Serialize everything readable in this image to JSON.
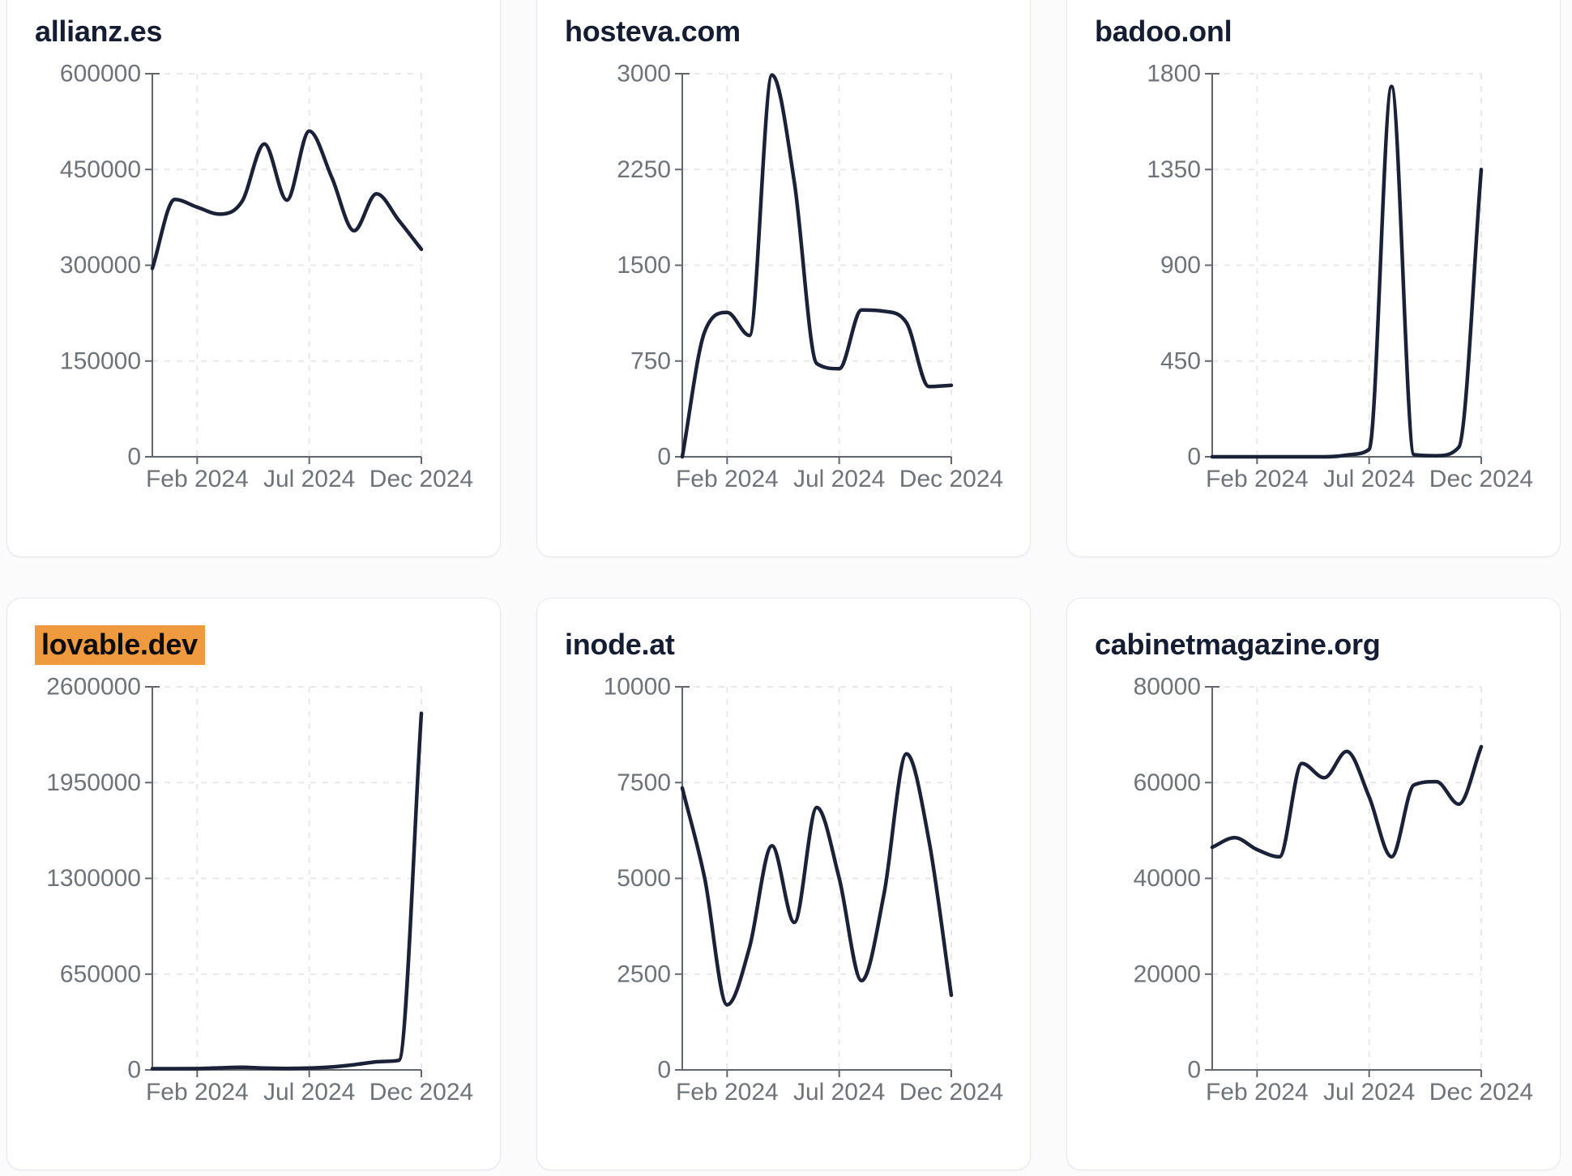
{
  "page": {
    "background": "#fbfbfc",
    "card_background": "#ffffff",
    "card_border": "#e6e9ef"
  },
  "chart_style": {
    "line_color": "#1b2238",
    "axis_color": "#63676d",
    "grid_color": "#e8e8ea",
    "label_color": "#6f7378",
    "title_color": "#151d33",
    "highlight_color": "#f09a3f"
  },
  "chart_data": [
    {
      "type": "line",
      "title": "allianz.es",
      "title_highlight": false,
      "x": [
        "Dec 2023",
        "Jan 2024",
        "Feb 2024",
        "Mar 2024",
        "Apr 2024",
        "May 2024",
        "Jun 2024",
        "Jul 2024",
        "Aug 2024",
        "Sep 2024",
        "Oct 2024",
        "Nov 2024",
        "Dec 2024"
      ],
      "values": [
        295000,
        403000,
        391000,
        380000,
        400000,
        490000,
        402000,
        510000,
        438000,
        354000,
        412000,
        370000,
        325000
      ],
      "ylim": [
        0,
        600000
      ],
      "y_ticks": [
        0,
        150000,
        300000,
        450000,
        600000
      ],
      "x_tick_labels": [
        "Feb 2024",
        "Jul 2024",
        "Dec 2024"
      ],
      "x_tick_positions": [
        0.16667,
        0.58333,
        1.0
      ],
      "grid": true,
      "legend": "none"
    },
    {
      "type": "line",
      "title": "hosteva.com",
      "title_highlight": false,
      "x": [
        "Dec 2023",
        "Jan 2024",
        "Feb 2024",
        "Mar 2024",
        "Apr 2024",
        "May 2024",
        "Jun 2024",
        "Jul 2024",
        "Aug 2024",
        "Sep 2024",
        "Oct 2024",
        "Nov 2024",
        "Dec 2024"
      ],
      "values": [
        0,
        980,
        1130,
        950,
        2990,
        2150,
        730,
        690,
        1150,
        1140,
        1050,
        550,
        560
      ],
      "ylim": [
        0,
        3000
      ],
      "y_ticks": [
        0,
        750,
        1500,
        2250,
        3000
      ],
      "x_tick_labels": [
        "Feb 2024",
        "Jul 2024",
        "Dec 2024"
      ],
      "x_tick_positions": [
        0.16667,
        0.58333,
        1.0
      ],
      "grid": true,
      "legend": "none"
    },
    {
      "type": "line",
      "title": "badoo.onl",
      "title_highlight": false,
      "x": [
        "Dec 2023",
        "Jan 2024",
        "Feb 2024",
        "Mar 2024",
        "Apr 2024",
        "May 2024",
        "Jun 2024",
        "Jul 2024",
        "Aug 2024",
        "Sep 2024",
        "Oct 2024",
        "Nov 2024",
        "Dec 2024"
      ],
      "values": [
        0,
        0,
        0,
        0,
        0,
        0,
        8,
        35,
        1740,
        10,
        5,
        45,
        1350
      ],
      "ylim": [
        0,
        1800
      ],
      "y_ticks": [
        0,
        450,
        900,
        1350,
        1800
      ],
      "x_tick_labels": [
        "Feb 2024",
        "Jul 2024",
        "Dec 2024"
      ],
      "x_tick_positions": [
        0.16667,
        0.58333,
        1.0
      ],
      "grid": true,
      "legend": "none"
    },
    {
      "type": "line",
      "title": "lovable.dev",
      "title_highlight": true,
      "x": [
        "Dec 2023",
        "Jan 2024",
        "Feb 2024",
        "Mar 2024",
        "Apr 2024",
        "May 2024",
        "Jun 2024",
        "Jul 2024",
        "Aug 2024",
        "Sep 2024",
        "Oct 2024",
        "Nov 2024",
        "Dec 2024"
      ],
      "values": [
        8000,
        8000,
        9000,
        14000,
        18000,
        12000,
        10000,
        12000,
        20000,
        35000,
        55000,
        65000,
        2420000
      ],
      "ylim": [
        0,
        2600000
      ],
      "y_ticks": [
        0,
        650000,
        1300000,
        1950000,
        2600000
      ],
      "x_tick_labels": [
        "Feb 2024",
        "Jul 2024",
        "Dec 2024"
      ],
      "x_tick_positions": [
        0.16667,
        0.58333,
        1.0
      ],
      "grid": true,
      "legend": "none"
    },
    {
      "type": "line",
      "title": "inode.at",
      "title_highlight": false,
      "x": [
        "Dec 2023",
        "Jan 2024",
        "Feb 2024",
        "Mar 2024",
        "Apr 2024",
        "May 2024",
        "Jun 2024",
        "Jul 2024",
        "Aug 2024",
        "Sep 2024",
        "Oct 2024",
        "Nov 2024",
        "Dec 2024"
      ],
      "values": [
        7360,
        5000,
        1700,
        3200,
        5850,
        3850,
        6850,
        5000,
        2330,
        4600,
        8250,
        6000,
        1950
      ],
      "ylim": [
        0,
        10000
      ],
      "y_ticks": [
        0,
        2500,
        5000,
        7500,
        10000
      ],
      "x_tick_labels": [
        "Feb 2024",
        "Jul 2024",
        "Dec 2024"
      ],
      "x_tick_positions": [
        0.16667,
        0.58333,
        1.0
      ],
      "grid": true,
      "legend": "none"
    },
    {
      "type": "line",
      "title": "cabinetmagazine.org",
      "title_highlight": false,
      "x": [
        "Dec 2023",
        "Jan 2024",
        "Feb 2024",
        "Mar 2024",
        "Apr 2024",
        "May 2024",
        "Jun 2024",
        "Jul 2024",
        "Aug 2024",
        "Sep 2024",
        "Oct 2024",
        "Nov 2024",
        "Dec 2024"
      ],
      "values": [
        46500,
        48500,
        46000,
        44500,
        64000,
        61000,
        66500,
        57000,
        44500,
        59500,
        60200,
        55500,
        67500
      ],
      "ylim": [
        0,
        80000
      ],
      "y_ticks": [
        0,
        20000,
        40000,
        60000,
        80000
      ],
      "x_tick_labels": [
        "Feb 2024",
        "Jul 2024",
        "Dec 2024"
      ],
      "x_tick_positions": [
        0.16667,
        0.58333,
        1.0
      ],
      "grid": true,
      "legend": "none"
    }
  ]
}
